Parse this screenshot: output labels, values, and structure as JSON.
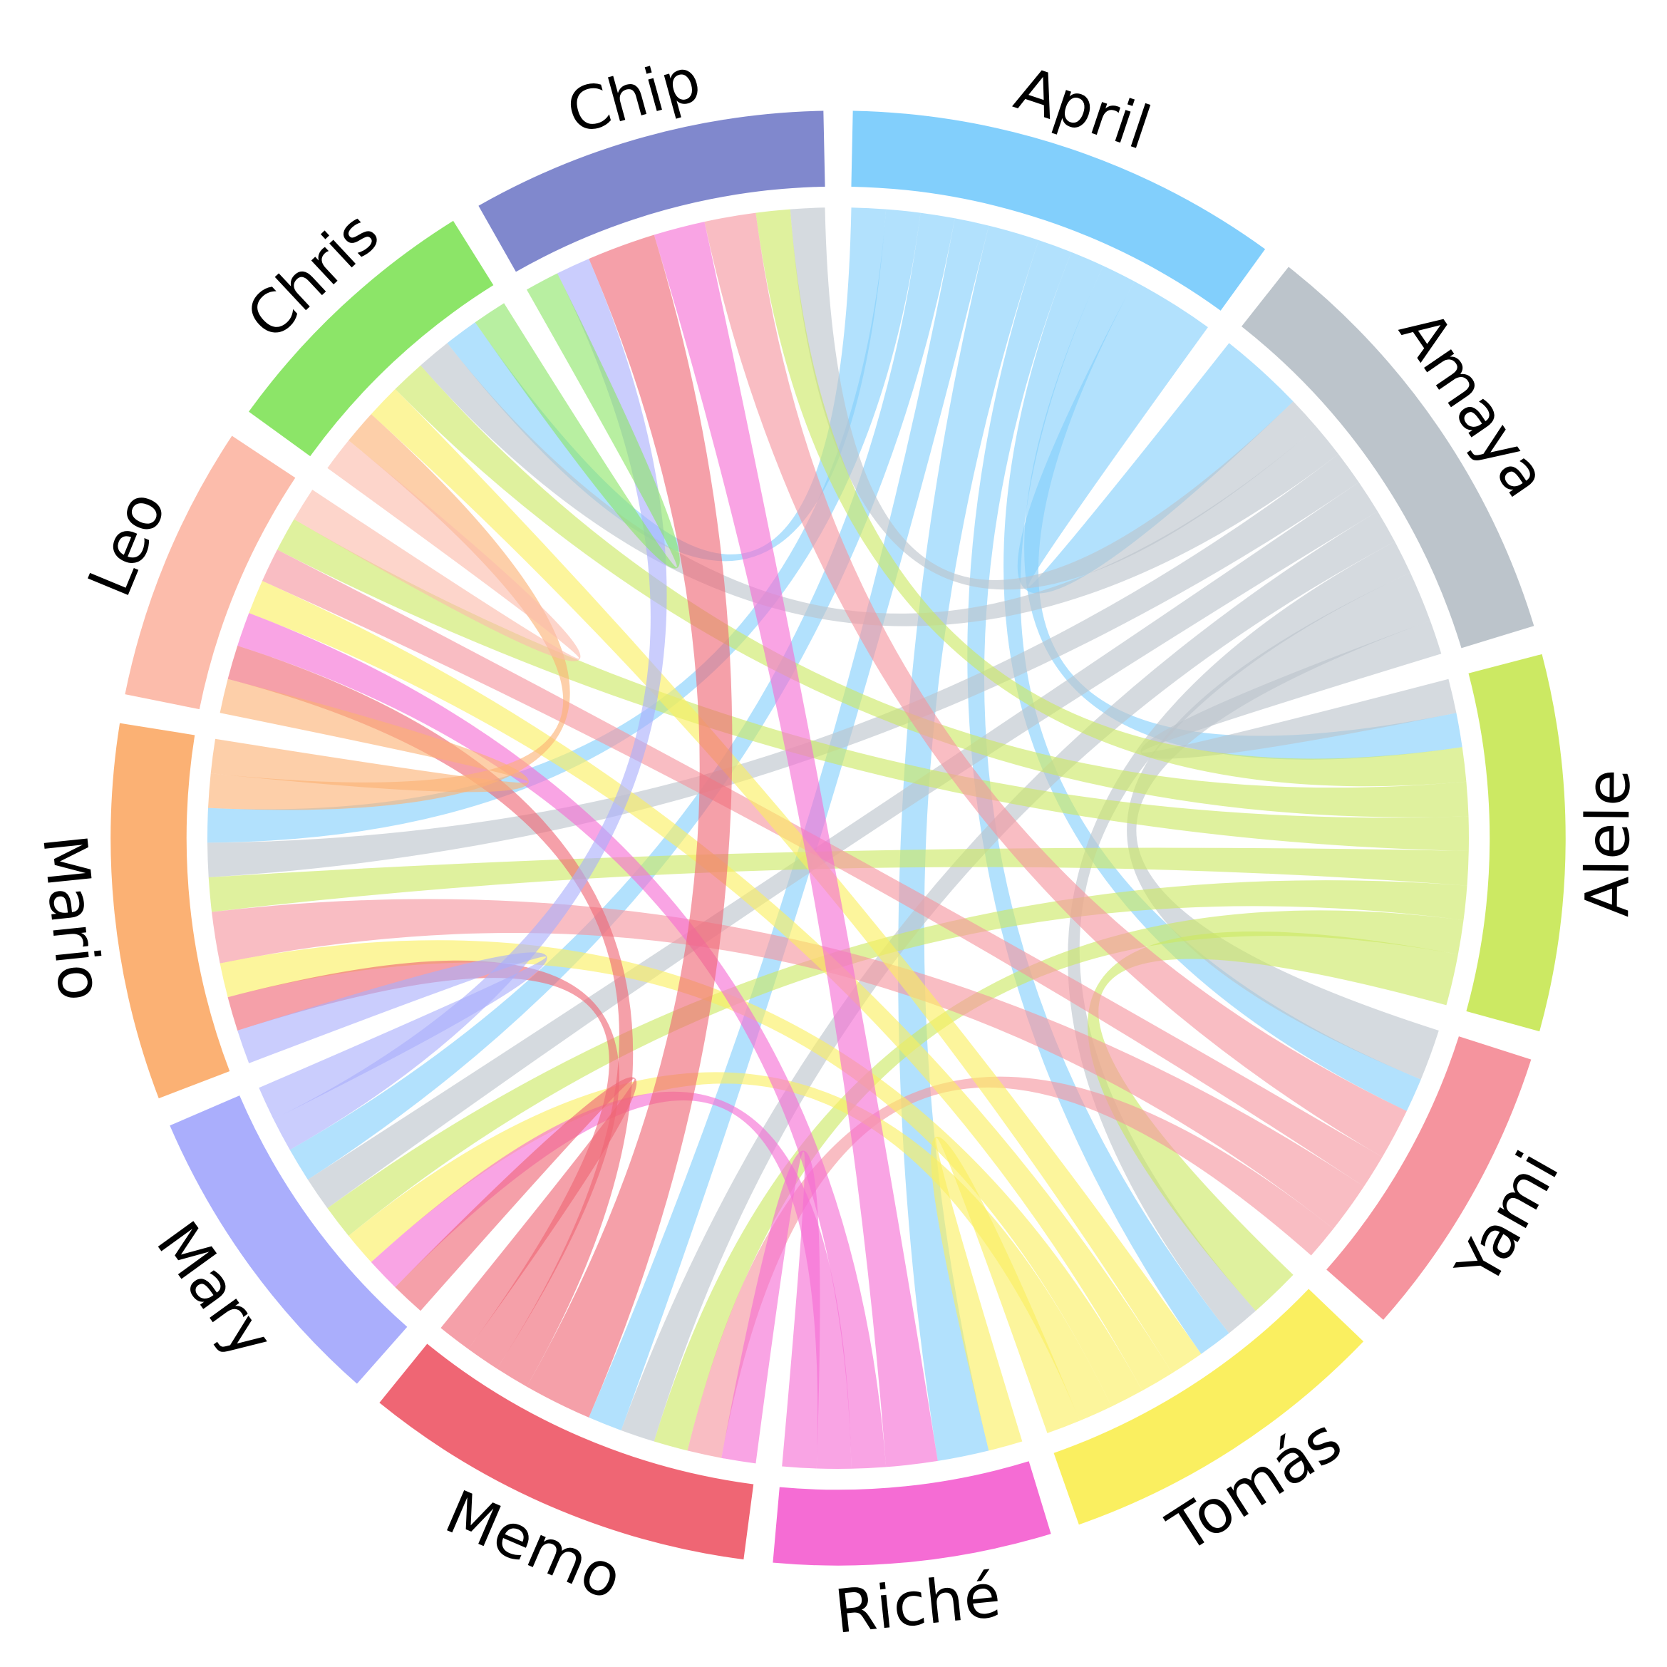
{
  "chart_data": {
    "type": "chord",
    "title": "",
    "groups": [
      {
        "name": "April",
        "color": "#82cffc"
      },
      {
        "name": "Amaya",
        "color": "#bcc4cb"
      },
      {
        "name": "Alele",
        "color": "#cce963"
      },
      {
        "name": "Yami",
        "color": "#f5949e"
      },
      {
        "name": "Tomás",
        "color": "#faef60"
      },
      {
        "name": "Riché",
        "color": "#f56cd4"
      },
      {
        "name": "Memo",
        "color": "#ef6674"
      },
      {
        "name": "Mary",
        "color": "#aaaefc"
      },
      {
        "name": "Mario",
        "color": "#fbb174"
      },
      {
        "name": "Leo",
        "color": "#fcbcab"
      },
      {
        "name": "Chris",
        "color": "#8ce568"
      },
      {
        "name": "Chip",
        "color": "#8088cd"
      }
    ],
    "flows": [
      [
        "April",
        "Amaya",
        5
      ],
      [
        "April",
        "Alele",
        2
      ],
      [
        "April",
        "Yami",
        2
      ],
      [
        "April",
        "Tomás",
        2
      ],
      [
        "April",
        "Riché",
        3
      ],
      [
        "April",
        "Memo",
        2
      ],
      [
        "April",
        "Mary",
        2
      ],
      [
        "April",
        "Mario",
        2
      ],
      [
        "April",
        "Chris",
        2
      ],
      [
        "Amaya",
        "Alele",
        2
      ],
      [
        "Amaya",
        "Yami",
        3
      ],
      [
        "Amaya",
        "Tomás",
        2
      ],
      [
        "Amaya",
        "Memo",
        2
      ],
      [
        "Amaya",
        "Mary",
        2
      ],
      [
        "Amaya",
        "Mario",
        2
      ],
      [
        "Amaya",
        "Chris",
        2
      ],
      [
        "Amaya",
        "Chip",
        2
      ],
      [
        "Alele",
        "Tomás",
        3
      ],
      [
        "Alele",
        "Memo",
        2
      ],
      [
        "Alele",
        "Mary",
        2
      ],
      [
        "Alele",
        "Mario",
        2
      ],
      [
        "Alele",
        "Leo",
        2
      ],
      [
        "Alele",
        "Chris",
        2
      ],
      [
        "Alele",
        "Chip",
        2
      ],
      [
        "Yami",
        "Memo",
        2
      ],
      [
        "Yami",
        "Mario",
        3
      ],
      [
        "Yami",
        "Leo",
        2
      ],
      [
        "Yami",
        "Chip",
        3
      ],
      [
        "Tomás",
        "Riché",
        2
      ],
      [
        "Tomás",
        "Mary",
        2
      ],
      [
        "Tomás",
        "Mario",
        2
      ],
      [
        "Tomás",
        "Leo",
        2
      ],
      [
        "Tomás",
        "Chris",
        2
      ],
      [
        "Riché",
        "Memo",
        2
      ],
      [
        "Riché",
        "Mary",
        2
      ],
      [
        "Riché",
        "Leo",
        2
      ],
      [
        "Riché",
        "Chip",
        3
      ],
      [
        "Memo",
        "Mary",
        2
      ],
      [
        "Memo",
        "Mario",
        2
      ],
      [
        "Memo",
        "Leo",
        2
      ],
      [
        "Memo",
        "Chip",
        4
      ],
      [
        "Mary",
        "Mario",
        2
      ],
      [
        "Mary",
        "Chip",
        2
      ],
      [
        "Mario",
        "Leo",
        2
      ],
      [
        "Mario",
        "Chris",
        2
      ],
      [
        "Leo",
        "Chris",
        2
      ],
      [
        "Chris",
        "Chip",
        2
      ]
    ]
  }
}
